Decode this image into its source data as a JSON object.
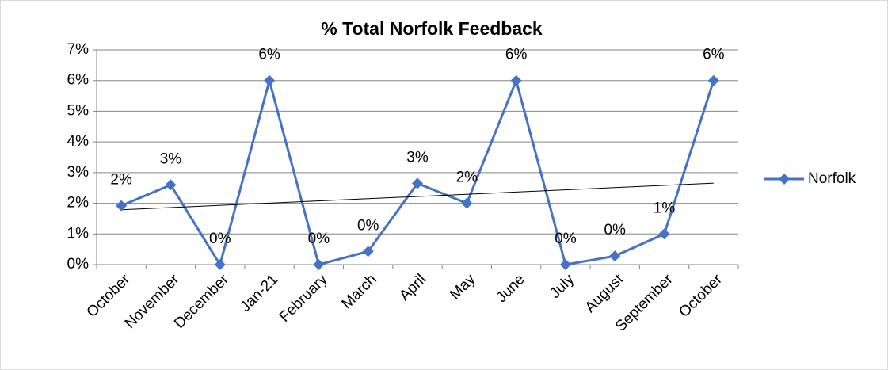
{
  "chart_data": {
    "type": "line",
    "title": "% Total Norfolk Feedback",
    "categories": [
      "October",
      "November",
      "December",
      "Jan-21",
      "February",
      "March",
      "April",
      "May",
      "June",
      "July",
      "August",
      "September",
      "October"
    ],
    "series": [
      {
        "name": "Norfolk",
        "color": "#4472c4",
        "values": [
          1.92,
          2.6,
          0,
          6,
          0,
          0.43,
          2.65,
          2.0,
          6,
          0,
          0.28,
          1.0,
          6
        ],
        "value_labels": [
          "2%",
          "3%",
          "0%",
          "6%",
          "0%",
          "0%",
          "3%",
          "2%",
          "6%",
          "0%",
          "0%",
          "1%",
          "6%"
        ]
      }
    ],
    "ylim": [
      0,
      7
    ],
    "yticks": [
      {
        "value": 0,
        "label": "0%"
      },
      {
        "value": 1,
        "label": "1%"
      },
      {
        "value": 2,
        "label": "2%"
      },
      {
        "value": 3,
        "label": "3%"
      },
      {
        "value": 4,
        "label": "4%"
      },
      {
        "value": 5,
        "label": "5%"
      },
      {
        "value": 6,
        "label": "6%"
      },
      {
        "value": 7,
        "label": "7%"
      }
    ],
    "grid": true,
    "trendline": "linear",
    "legend": "right"
  }
}
